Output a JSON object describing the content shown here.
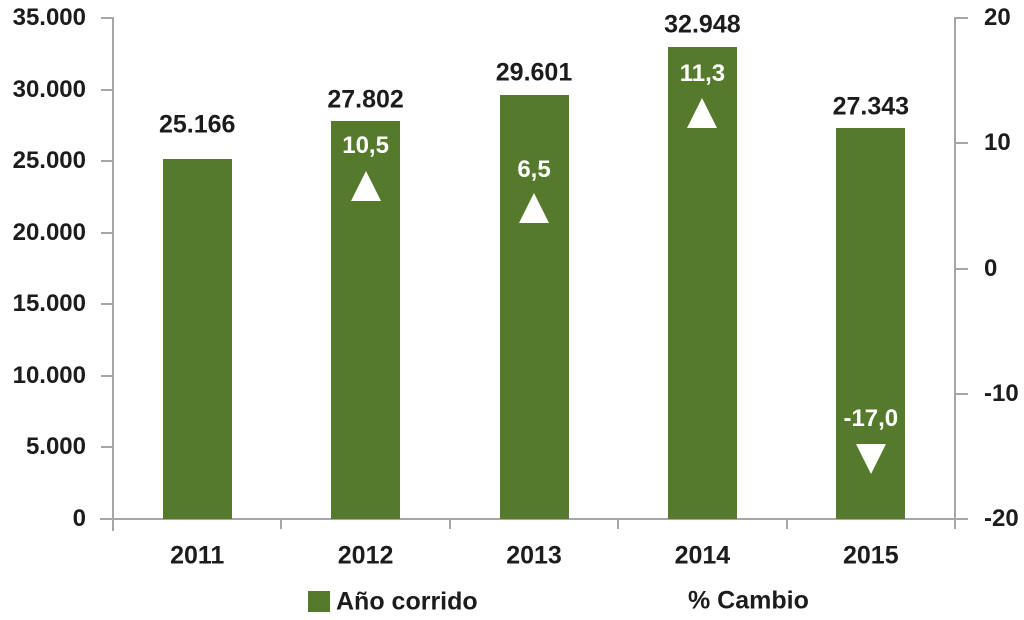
{
  "chart_data": {
    "type": "bar",
    "title": "",
    "categories": [
      "2011",
      "2012",
      "2013",
      "2014",
      "2015"
    ],
    "series": [
      {
        "name": "Año corrido",
        "type": "bar",
        "axis": "left",
        "values": [
          25166,
          27802,
          29601,
          32948,
          27343
        ],
        "labels": [
          "25.166",
          "27.802",
          "29.601",
          "32.948",
          "27.343"
        ]
      },
      {
        "name": "% Cambio",
        "type": "marker",
        "axis": "right",
        "marker": "white-triangle",
        "values": [
          null,
          10.5,
          6.5,
          11.3,
          -17.0
        ],
        "labels": [
          "",
          "10,5",
          "6,5",
          "11,3",
          "-17,0"
        ],
        "directions": [
          "",
          "up",
          "up",
          "up",
          "down"
        ]
      }
    ],
    "left_axis": {
      "min": 0,
      "max": 35000,
      "step": 5000,
      "ticks": [
        "35.000",
        "30.000",
        "25.000",
        "20.000",
        "15.000",
        "10.000",
        "5.000",
        "0"
      ]
    },
    "right_axis": {
      "min": -20,
      "max": 20,
      "step": 10,
      "ticks": [
        "20",
        "10",
        "0",
        "-10",
        "-20"
      ]
    },
    "legend": [
      "Año corrido",
      "% Cambio"
    ],
    "legend_position": "bottom",
    "grid": false,
    "colors": {
      "bar": "#567A2C",
      "axis": "#A6A6A6",
      "text": "#1C1C1C",
      "label_on_bar": "#FFFFFF",
      "background": "#FFFFFF"
    }
  }
}
